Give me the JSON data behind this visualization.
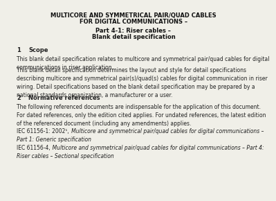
{
  "background_color": "#f0efe8",
  "title_line1": "MULTICORE AND SYMMETRICAL PAIR/QUAD CABLES",
  "title_line2": "FOR DIGITAL COMMUNICATIONS –",
  "subtitle_line1": "Part 4-1: Riser cables –",
  "subtitle_line2": "Blank detail specification",
  "section1_num": "1",
  "section1_title": "Scope",
  "section1_para1": "This blank detail specification relates to multicore and symmetrical pair/quad cables for digital\ncommunications in riser application.",
  "section1_para2": "This blank detail specification determines the layout and style for detail specifications\ndescribing multicore and symmetrical pair(s)/quad(s) cables for digital communication in riser\nwiring. Detail specifications based on the blank detail specification may be prepared by a\nnational standards organization, a manufacturer or a user.",
  "section2_num": "2",
  "section2_title": "Normative references",
  "section2_para1": "The following referenced documents are indispensable for the application of this document.\nFor dated references, only the edition cited applies. For undated references, the latest edition\nof the referenced document (including any amendments) applies.",
  "section2_ref1_italic": "Multicore and symmetrical pair/quad cables for digital communications –\nPart 1: Generic specification",
  "section2_ref2_italic": "Multicore and symmetrical pair/quad cables for digital communications – Part 4:\nRiser cables – Sectional specification",
  "text_color": "#222222",
  "title_color": "#111111"
}
